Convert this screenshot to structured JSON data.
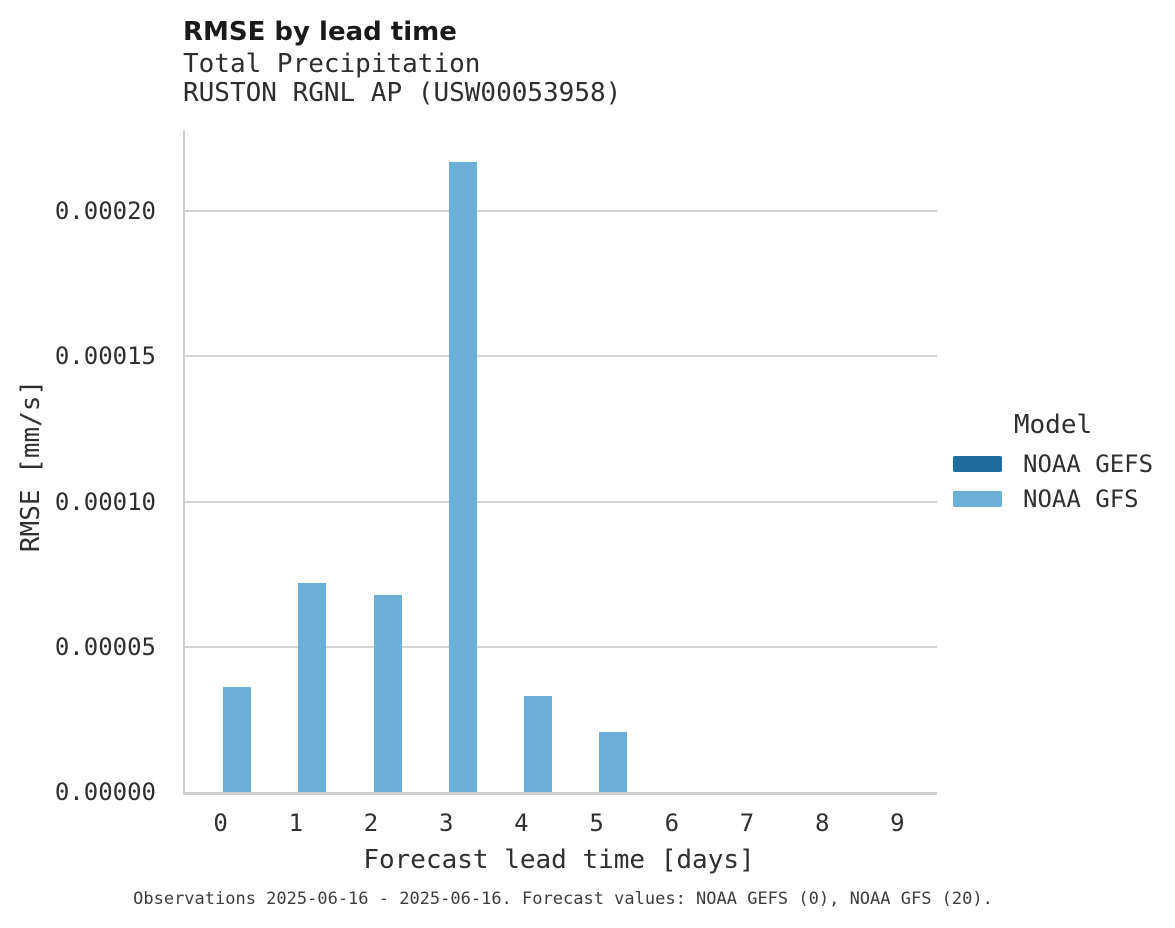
{
  "chart_data": {
    "type": "bar",
    "title": "RMSE by lead time",
    "subtitle_line1": "Total Precipitation",
    "subtitle_line2": "RUSTON RGNL AP (USW00053958)",
    "xlabel": "Forecast lead time [days]",
    "ylabel": "RMSE [mm/s]",
    "legend_title": "Model",
    "legend_position": "right",
    "caption": "Observations 2025-06-16 - 2025-06-16. Forecast values: NOAA GEFS (0), NOAA GFS (20).",
    "categories": [
      0,
      1,
      2,
      3,
      4,
      5,
      6,
      7,
      8,
      9
    ],
    "series": [
      {
        "name": "NOAA GEFS",
        "color": "#1E6E9F",
        "values": [
          0,
          0,
          0,
          0,
          0,
          0,
          0,
          0,
          0,
          0
        ]
      },
      {
        "name": "NOAA GFS",
        "color": "#69AFD7",
        "values": [
          3.6e-05,
          7.2e-05,
          6.8e-05,
          0.000217,
          3.3e-05,
          2.05e-05,
          0,
          0,
          0,
          0
        ]
      }
    ],
    "yticks": [
      0,
      5e-05,
      0.0001,
      0.00015,
      0.0002
    ],
    "ytick_labels": [
      "0.00000",
      "0.00005",
      "0.00010",
      "0.00015",
      "0.00020"
    ],
    "ylim": [
      0,
      0.000228
    ],
    "grid": "horizontal-only",
    "colors": {
      "gridline": "#d4d4d4",
      "axis": "#cfcfcf",
      "title_text": "#1a1a1a",
      "text": "#2f2f2f",
      "caption_text": "#3d3d3d",
      "background": "#ffffff"
    }
  }
}
